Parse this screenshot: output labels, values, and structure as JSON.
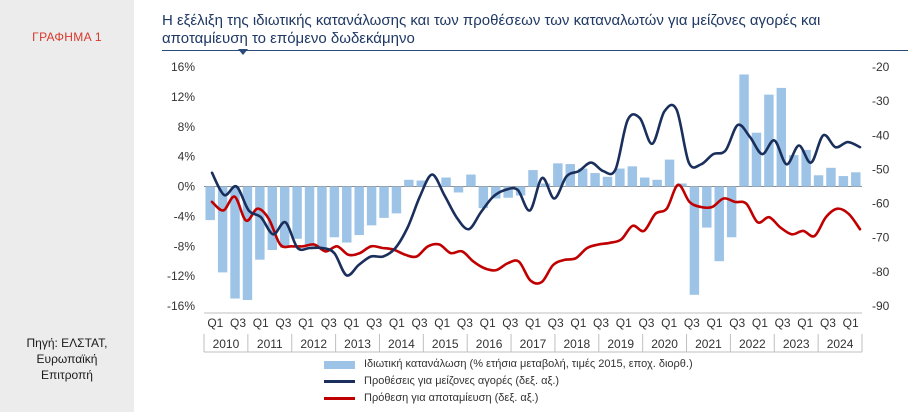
{
  "figure_label": "ΓΡΑΦΗΜΑ 1",
  "title_lines": [
    "Η εξέλιξη της ιδιωτικής κατανάλωσης και των προθέσεων των καταναλωτών για μείζονες αγορές και",
    "αποταμίευση το επόμενο δωδεκάμηνο"
  ],
  "source_lines": [
    "Πηγή: ΕΛΣΤΑΤ,",
    "Ευρωπαϊκή",
    "Επιτροπή"
  ],
  "colors": {
    "bars": "#9dc3e6",
    "purchases": "#1a2f5c",
    "savings": "#c00000",
    "figure_label": "#d7372a",
    "title": "#1f3864"
  },
  "chart_data": {
    "type": "bar",
    "title": "Η εξέλιξη της ιδιωτικής κατανάλωσης και των προθέσεων των καταναλωτών για μείζονες αγορές και αποταμίευση το επόμενο δωδεκάμηνο",
    "left_axis": {
      "range": [
        -16,
        16
      ],
      "ticks": [
        16,
        12,
        8,
        4,
        0,
        -4,
        -8,
        -12,
        -16
      ],
      "tick_labels": [
        "16%",
        "12%",
        "8%",
        "4%",
        "0%",
        "-4%",
        "-8%",
        "-12%",
        "-16%"
      ]
    },
    "right_axis": {
      "range": [
        -90,
        -20
      ],
      "ticks": [
        -20,
        -30,
        -40,
        -50,
        -60,
        -70,
        -80,
        -90
      ],
      "tick_labels": [
        "-20",
        "-30",
        "-40",
        "-50",
        "-60",
        "-70",
        "-80",
        "-90"
      ]
    },
    "quarter_labels": [
      "Q1",
      "Q3",
      "Q1",
      "Q3",
      "Q1",
      "Q3",
      "Q1",
      "Q3",
      "Q1",
      "Q3",
      "Q1",
      "Q3",
      "Q1",
      "Q3",
      "Q1",
      "Q3",
      "Q1",
      "Q3",
      "Q1",
      "Q3",
      "Q1",
      "Q3",
      "Q1",
      "Q3",
      "Q1",
      "Q3",
      "Q1",
      "Q3",
      "Q1"
    ],
    "year_labels": [
      "2010",
      "2011",
      "2012",
      "2013",
      "2014",
      "2015",
      "2016",
      "2017",
      "2018",
      "2019",
      "2020",
      "2021",
      "2022",
      "2023",
      "2024"
    ],
    "grid": false,
    "legend_position": "bottom",
    "series": [
      {
        "name": "Ιδιωτική κατανάλωση (% ετήσια μεταβολή, τιμές 2015, εποχ. διορθ.)",
        "type": "bar",
        "axis": "left",
        "values": [
          -4.5,
          -11.5,
          -15,
          -15.2,
          -9.8,
          -8.5,
          -8.2,
          -7,
          -8,
          -8.3,
          -6.8,
          -7.5,
          -6.5,
          -5.2,
          -4.2,
          -3.6,
          0.9,
          0.8,
          0,
          1.2,
          -0.8,
          1.6,
          -2.9,
          -1.6,
          -1.5,
          -1.2,
          2.2,
          0.4,
          3.1,
          3.0,
          2.4,
          1.8,
          1.3,
          2.4,
          2.7,
          1.2,
          0.9,
          3.6,
          0.4,
          -14.5,
          -5.5,
          -10,
          -6.8,
          15,
          7.2,
          12.3,
          13.2,
          4.2,
          4.9,
          1.5,
          2.5,
          1.4,
          1.9
        ]
      },
      {
        "name": "Προθέσεις για μείζονες αγορές (δεξ. αξ.)",
        "type": "line",
        "axis": "right",
        "values": [
          -51,
          -57.5,
          -55,
          -62,
          -64,
          -69,
          -65.5,
          -73,
          -73,
          -73,
          -74.5,
          -81,
          -78,
          -75.5,
          -75.5,
          -73,
          -67,
          -58,
          -51.5,
          -57.5,
          -64,
          -67.5,
          -62.5,
          -58,
          -56,
          -56,
          -62,
          -52.5,
          -58.5,
          -52,
          -50.5,
          -48,
          -50.5,
          -50,
          -35.5,
          -35,
          -42.5,
          -33,
          -32.5,
          -48,
          -48.5,
          -45.5,
          -44.5,
          -37,
          -40.5,
          -45.5,
          -41.5,
          -48.5,
          -43,
          -48,
          -40,
          -43.5,
          -42,
          -43.5
        ]
      },
      {
        "name": "Πρόθεση για αποταμίευση (δεξ. αξ.)",
        "type": "line",
        "axis": "right",
        "values": [
          -59.5,
          -62,
          -58,
          -65,
          -61.5,
          -64.5,
          -72,
          -72.5,
          -72.5,
          -72,
          -74,
          -72.5,
          -75,
          -74.5,
          -72.5,
          -73,
          -73.5,
          -75,
          -75.5,
          -72.5,
          -72,
          -74.5,
          -74,
          -77,
          -79,
          -79.5,
          -77.5,
          -77,
          -82.5,
          -83,
          -78,
          -76.5,
          -76,
          -73,
          -72,
          -71.5,
          -70.5,
          -66.5,
          -68,
          -63,
          -61.5,
          -54.5,
          -59.5,
          -61,
          -61,
          -58.5,
          -59.5,
          -60,
          -65.5,
          -64,
          -67,
          -69,
          -68,
          -69.5,
          -64,
          -61.5,
          -63,
          -67.5
        ]
      }
    ]
  }
}
